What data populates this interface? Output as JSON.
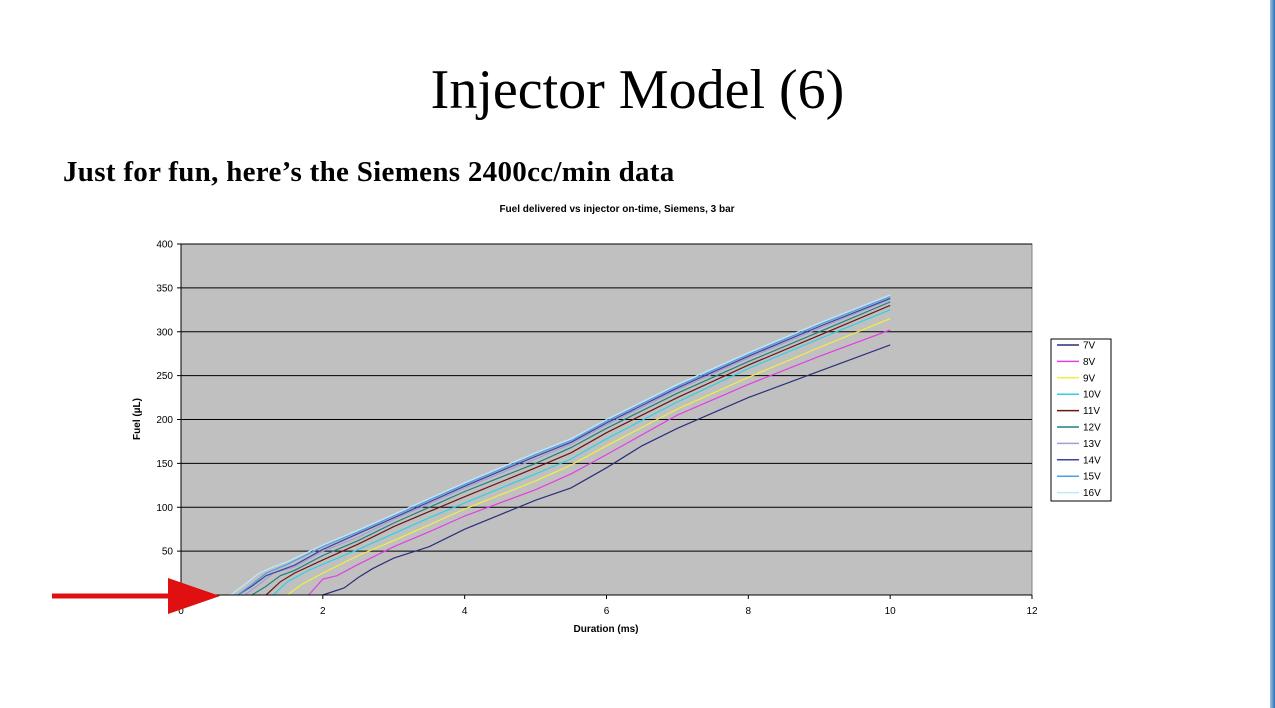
{
  "slide": {
    "title": "Injector Model (6)",
    "subtitle": "Just for fun, here’s the Siemens 2400cc/min data"
  },
  "chart_data": {
    "type": "line",
    "title": "Fuel delivered vs injector on-time, Siemens, 3 bar",
    "xlabel": "Duration (ms)",
    "ylabel": "Fuel (µL)",
    "xlim": [
      0,
      12
    ],
    "ylim": [
      0,
      400
    ],
    "xticks": [
      0,
      2,
      4,
      6,
      8,
      10,
      12
    ],
    "yticks": [
      0,
      50,
      100,
      150,
      200,
      250,
      300,
      350,
      400
    ],
    "grid": true,
    "legend_position": "right",
    "plot_background": "#c0c0c0",
    "series": [
      {
        "name": "7V",
        "color": "#2b2f7a",
        "points": [
          [
            2.0,
            0
          ],
          [
            2.3,
            8
          ],
          [
            2.5,
            20
          ],
          [
            2.7,
            30
          ],
          [
            3.0,
            42
          ],
          [
            3.5,
            55
          ],
          [
            4.0,
            75
          ],
          [
            5.0,
            108
          ],
          [
            5.5,
            122
          ],
          [
            6.0,
            145
          ],
          [
            6.5,
            170
          ],
          [
            7.0,
            190
          ],
          [
            8.0,
            225
          ],
          [
            9.0,
            255
          ],
          [
            10.0,
            285
          ]
        ]
      },
      {
        "name": "8V",
        "color": "#e040e0",
        "points": [
          [
            1.8,
            0
          ],
          [
            2.0,
            18
          ],
          [
            2.2,
            22
          ],
          [
            2.5,
            35
          ],
          [
            3.0,
            55
          ],
          [
            3.5,
            72
          ],
          [
            4.0,
            90
          ],
          [
            5.0,
            120
          ],
          [
            5.5,
            138
          ],
          [
            6.0,
            160
          ],
          [
            7.0,
            205
          ],
          [
            8.0,
            240
          ],
          [
            9.0,
            272
          ],
          [
            10.0,
            302
          ]
        ]
      },
      {
        "name": "9V",
        "color": "#f0f040",
        "points": [
          [
            1.5,
            0
          ],
          [
            1.7,
            12
          ],
          [
            2.0,
            25
          ],
          [
            2.5,
            45
          ],
          [
            3.0,
            62
          ],
          [
            3.5,
            80
          ],
          [
            4.0,
            98
          ],
          [
            5.0,
            130
          ],
          [
            5.5,
            148
          ],
          [
            6.0,
            170
          ],
          [
            7.0,
            212
          ],
          [
            8.0,
            248
          ],
          [
            9.0,
            282
          ],
          [
            10.0,
            315
          ]
        ]
      },
      {
        "name": "10V",
        "color": "#30d0e0",
        "points": [
          [
            1.3,
            0
          ],
          [
            1.5,
            15
          ],
          [
            1.8,
            28
          ],
          [
            2.0,
            35
          ],
          [
            2.5,
            52
          ],
          [
            3.0,
            70
          ],
          [
            3.5,
            88
          ],
          [
            4.0,
            105
          ],
          [
            5.0,
            138
          ],
          [
            5.5,
            155
          ],
          [
            6.0,
            178
          ],
          [
            7.0,
            220
          ],
          [
            8.0,
            258
          ],
          [
            9.0,
            292
          ],
          [
            10.0,
            325
          ]
        ]
      },
      {
        "name": "11V",
        "color": "#6a1515",
        "points": [
          [
            1.2,
            0
          ],
          [
            1.4,
            15
          ],
          [
            1.6,
            25
          ],
          [
            2.0,
            40
          ],
          [
            2.5,
            58
          ],
          [
            3.0,
            78
          ],
          [
            3.5,
            95
          ],
          [
            4.0,
            112
          ],
          [
            5.0,
            145
          ],
          [
            5.5,
            162
          ],
          [
            6.0,
            185
          ],
          [
            7.0,
            225
          ],
          [
            8.0,
            262
          ],
          [
            9.0,
            296
          ],
          [
            10.0,
            330
          ]
        ]
      },
      {
        "name": "12V",
        "color": "#208080",
        "points": [
          [
            1.0,
            0
          ],
          [
            1.2,
            10
          ],
          [
            1.4,
            22
          ],
          [
            1.6,
            28
          ],
          [
            2.0,
            45
          ],
          [
            2.5,
            62
          ],
          [
            3.0,
            82
          ],
          [
            3.5,
            100
          ],
          [
            4.0,
            118
          ],
          [
            5.0,
            150
          ],
          [
            5.5,
            168
          ],
          [
            6.0,
            190
          ],
          [
            7.0,
            230
          ],
          [
            8.0,
            266
          ],
          [
            9.0,
            300
          ],
          [
            10.0,
            334
          ]
        ]
      },
      {
        "name": "13V",
        "color": "#a0a0d8",
        "points": [
          [
            0.9,
            0
          ],
          [
            1.1,
            12
          ],
          [
            1.3,
            25
          ],
          [
            1.6,
            32
          ],
          [
            2.0,
            50
          ],
          [
            2.5,
            66
          ],
          [
            3.0,
            86
          ],
          [
            3.5,
            104
          ],
          [
            4.0,
            122
          ],
          [
            5.0,
            155
          ],
          [
            5.5,
            172
          ],
          [
            6.0,
            194
          ],
          [
            7.0,
            234
          ],
          [
            8.0,
            270
          ],
          [
            9.0,
            304
          ],
          [
            10.0,
            337
          ]
        ]
      },
      {
        "name": "14V",
        "color": "#4040a0",
        "points": [
          [
            0.8,
            0
          ],
          [
            1.0,
            10
          ],
          [
            1.2,
            22
          ],
          [
            1.4,
            28
          ],
          [
            1.6,
            34
          ],
          [
            2.0,
            52
          ],
          [
            2.5,
            70
          ],
          [
            3.0,
            88
          ],
          [
            3.5,
            106
          ],
          [
            4.0,
            124
          ],
          [
            5.0,
            158
          ],
          [
            5.5,
            174
          ],
          [
            6.0,
            196
          ],
          [
            7.0,
            236
          ],
          [
            8.0,
            272
          ],
          [
            9.0,
            306
          ],
          [
            10.0,
            338
          ]
        ]
      },
      {
        "name": "15V",
        "color": "#4aa0e8",
        "points": [
          [
            0.8,
            0
          ],
          [
            1.0,
            12
          ],
          [
            1.2,
            25
          ],
          [
            1.5,
            35
          ],
          [
            2.0,
            55
          ],
          [
            2.5,
            72
          ],
          [
            3.0,
            90
          ],
          [
            3.5,
            108
          ],
          [
            4.0,
            126
          ],
          [
            5.0,
            160
          ],
          [
            5.5,
            176
          ],
          [
            6.0,
            198
          ],
          [
            7.0,
            238
          ],
          [
            8.0,
            274
          ],
          [
            9.0,
            308
          ],
          [
            10.0,
            340
          ]
        ]
      },
      {
        "name": "16V",
        "color": "#c0e8f8",
        "points": [
          [
            0.7,
            0
          ],
          [
            0.9,
            12
          ],
          [
            1.1,
            25
          ],
          [
            1.3,
            32
          ],
          [
            1.5,
            38
          ],
          [
            2.0,
            57
          ],
          [
            2.5,
            74
          ],
          [
            3.0,
            92
          ],
          [
            3.5,
            110
          ],
          [
            4.0,
            128
          ],
          [
            5.0,
            162
          ],
          [
            5.5,
            178
          ],
          [
            6.0,
            200
          ],
          [
            7.0,
            240
          ],
          [
            8.0,
            276
          ],
          [
            9.0,
            310
          ],
          [
            10.0,
            342
          ]
        ]
      }
    ]
  }
}
